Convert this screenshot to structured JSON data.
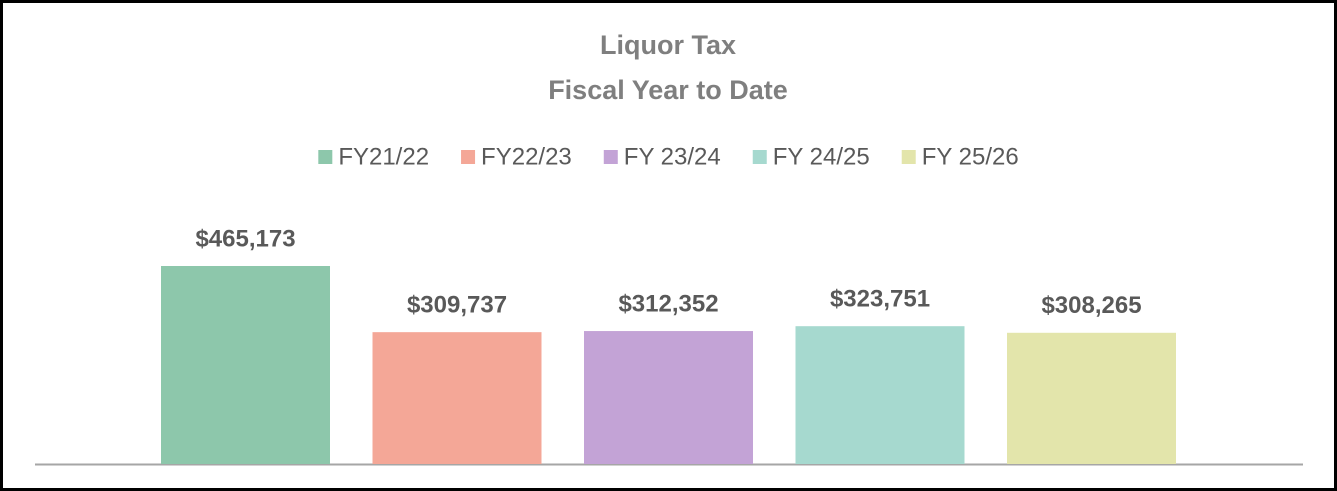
{
  "chart_data": {
    "type": "bar",
    "title": "Liquor Tax",
    "subtitle": "Fiscal Year to Date",
    "series": [
      {
        "name": "FY21/22",
        "color": "#8dc7ab",
        "values": [
          465173
        ],
        "value_labels": [
          "$465,173"
        ]
      },
      {
        "name": "FY22/23",
        "color": "#f4a797",
        "values": [
          309737
        ],
        "value_labels": [
          "$309,737"
        ]
      },
      {
        "name": "FY 23/24",
        "color": "#c3a3d6",
        "values": [
          312352
        ],
        "value_labels": [
          "$312,352"
        ]
      },
      {
        "name": "FY 24/25",
        "color": "#a6d9cf",
        "values": [
          323751
        ],
        "value_labels": [
          "$323,751"
        ]
      },
      {
        "name": "FY 25/26",
        "color": "#e3e5ab",
        "values": [
          308265
        ],
        "value_labels": [
          "$308,265"
        ]
      }
    ],
    "legend": "top"
  }
}
